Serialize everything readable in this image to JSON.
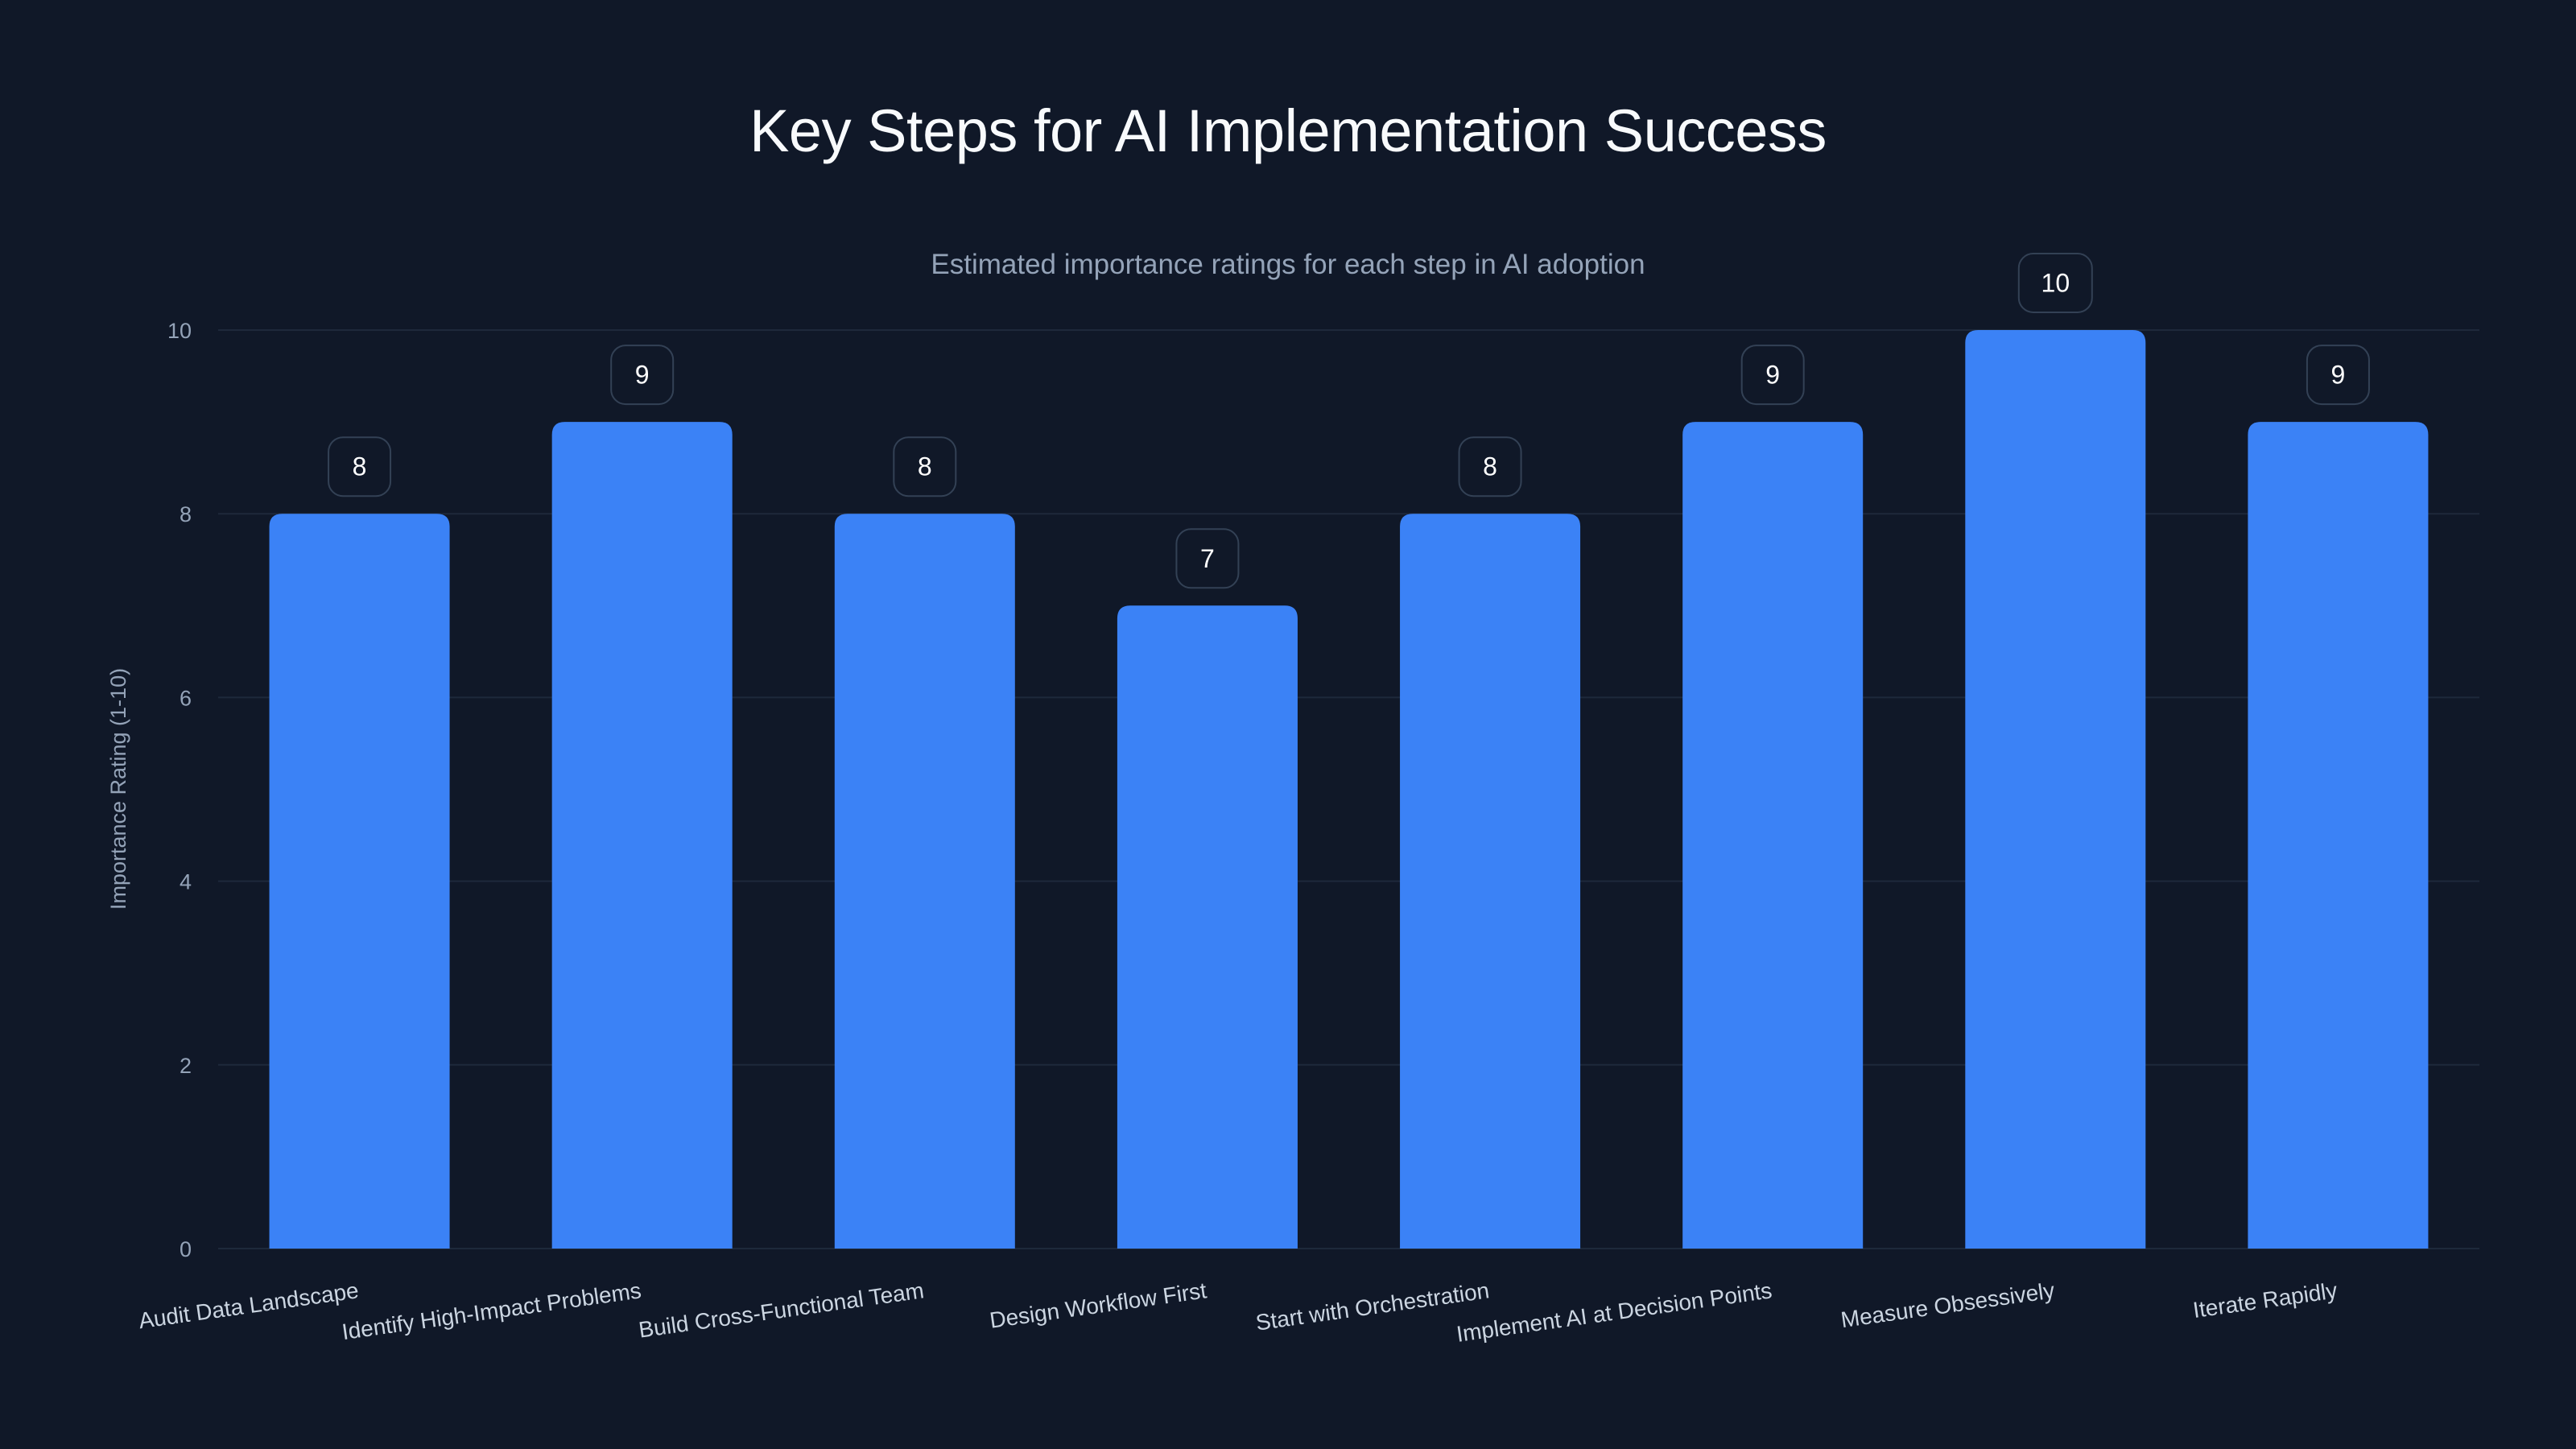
{
  "chart_data": {
    "type": "bar",
    "title": "Key Steps for AI Implementation Success",
    "subtitle": "Estimated importance ratings for each step in AI adoption",
    "xlabel": "",
    "ylabel": "Importance Rating (1-10)",
    "ylim": [
      0,
      10
    ],
    "yticks": [
      0,
      2,
      4,
      6,
      8,
      10
    ],
    "grid": true,
    "legend": null,
    "categories": [
      "Audit Data Landscape",
      "Identify High-Impact Problems",
      "Build Cross-Functional Team",
      "Design Workflow First",
      "Start with Orchestration",
      "Implement AI at Decision Points",
      "Measure Obsessively",
      "Iterate Rapidly"
    ],
    "values": [
      8,
      9,
      8,
      7,
      8,
      9,
      10,
      9
    ],
    "data_labels": [
      "8",
      "9",
      "8",
      "7",
      "8",
      "9",
      "10",
      "9"
    ]
  },
  "colors": {
    "background": "#101828",
    "bar": "#3b82f6",
    "grid": "#1e293b",
    "label_box_border": "#334155",
    "label_box_fill": "#101828"
  }
}
